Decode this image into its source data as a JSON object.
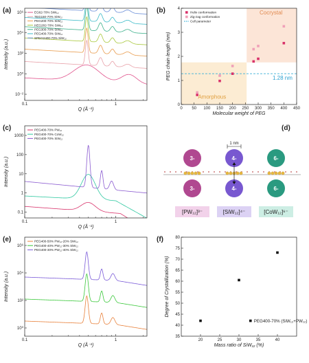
{
  "chart_data": [
    {
      "panel": "(a)",
      "type": "line",
      "xlabel": "Q (Å⁻¹)",
      "ylabel": "Intensity (a.u.)",
      "xscale": "log",
      "yscale": "log",
      "xticks": [
        "0.1",
        "1"
      ],
      "yticks": [
        "10⁻²",
        "10⁰",
        "10²",
        "10⁴",
        "10⁶"
      ],
      "legend_position": "top-left",
      "series": [
        {
          "name": "EG62-70% SiW₁₂",
          "color": "#e0508a"
        },
        {
          "name": "TEG150-70% SiW₁₂",
          "color": "#e8a0a8"
        },
        {
          "name": "PEG200-70% SiW₁₂",
          "color": "#e89a4a"
        },
        {
          "name": "HEG282-70% SiW₁₂",
          "color": "#a8c83a"
        },
        {
          "name": "PEG300-70% SiW₁₂",
          "color": "#3ab08a"
        },
        {
          "name": "PEG400-70% SiW₁₂",
          "color": "#3abac8"
        },
        {
          "name": "SPEG2400-70% SiW₁₂",
          "color": "#6a8ed8"
        }
      ]
    },
    {
      "panel": "(b)",
      "type": "scatter",
      "xlabel": "Molecular weight of PEG",
      "ylabel": "PEG chain length (nm)",
      "xlim": [
        0,
        450
      ],
      "ylim": [
        0,
        4
      ],
      "xticks": [
        "0",
        "50",
        "100",
        "150",
        "200",
        "250",
        "300",
        "350",
        "400",
        "450"
      ],
      "yticks": [
        "0",
        "1",
        "2",
        "3",
        "4"
      ],
      "legend_position": "top-left",
      "regions": [
        "Amorphous",
        "Cocrystal"
      ],
      "cell_parameter": {
        "label": "Cell parameter",
        "value": 1.28,
        "text": "1.28 nm"
      },
      "series": [
        {
          "name": "Helix conformation",
          "color": "#d8326a",
          "points": [
            [
              62,
              0.4
            ],
            [
              150,
              0.98
            ],
            [
              200,
              1.28
            ],
            [
              282,
              1.79
            ],
            [
              300,
              1.9
            ],
            [
              400,
              2.55
            ]
          ]
        },
        {
          "name": "Zig-zag conformation",
          "color": "#f0a0b8",
          "points": [
            [
              62,
              0.5
            ],
            [
              150,
              1.2
            ],
            [
              200,
              1.6
            ],
            [
              282,
              2.3
            ],
            [
              300,
              2.43
            ],
            [
              400,
              3.25
            ]
          ]
        }
      ]
    },
    {
      "panel": "(c)",
      "type": "line",
      "xlabel": "Q (Å⁻¹)",
      "ylabel": "Intensity (a.u.)",
      "xscale": "log",
      "yscale": "log",
      "xticks": [
        "0.1",
        "1"
      ],
      "yticks": [
        "0.1",
        "1",
        "10",
        "100",
        "1000"
      ],
      "legend_position": "top-left",
      "series": [
        {
          "name": "PEG400-70% PW₁₂",
          "color": "#d8326a"
        },
        {
          "name": "PEG400-70% CoW₁₂",
          "color": "#2ec8a0"
        },
        {
          "name": "PEG400-70% SiW₁₂",
          "color": "#8a5ad0"
        }
      ]
    },
    {
      "panel": "(e)",
      "type": "line",
      "xlabel": "Q (Å⁻¹)",
      "ylabel": "Intensity (a.u.)",
      "xscale": "log",
      "yscale": "log",
      "xticks": [
        "0.1",
        "1"
      ],
      "yticks": [
        "10⁰",
        "10²",
        "10⁴",
        "10⁶"
      ],
      "legend_position": "top-left",
      "series": [
        {
          "name": "PEG400-50% PW₁₂-20% SiW₁₂",
          "color": "#e8803a"
        },
        {
          "name": "PEG400-40% PW₁₂-30% SiW₁₂",
          "color": "#3ac83a"
        },
        {
          "name": "PEG400-30% PW₁₂-40% SiW₁₂",
          "color": "#7a5ad8"
        }
      ]
    },
    {
      "panel": "(f)",
      "type": "scatter",
      "xlabel": "Mass ratio of SiW₁₂ (%)",
      "ylabel": "Degree of Crystallization (%)",
      "xlim": [
        15,
        45
      ],
      "ylim": [
        35,
        80
      ],
      "xticks": [
        "20",
        "25",
        "30",
        "35",
        "40"
      ],
      "yticks": [
        "35",
        "40",
        "45",
        "50",
        "55",
        "60",
        "65",
        "70",
        "75",
        "80"
      ],
      "legend_position": "bottom-right",
      "series": [
        {
          "name": "PEG400-70% (SiW₁₂+PW₁₂)",
          "color": "#111111",
          "points": [
            [
              20,
              42
            ],
            [
              30,
              60.5
            ],
            [
              40,
              73
            ]
          ]
        }
      ]
    }
  ],
  "diagram_d": {
    "panel": "(d)",
    "spacing": "1 nm",
    "clusters": [
      {
        "charge_top": "3-",
        "charge_bottom": "3-",
        "formula": "[PW₁₂]³⁻",
        "color": "#b04890",
        "label_bg": "#f2d2ea"
      },
      {
        "charge_top": "4-",
        "charge_bottom": "4-",
        "formula": "[SiW₁₂]⁴⁻",
        "color": "#7858d0",
        "label_bg": "#dcd2f4"
      },
      {
        "charge_top": "6-",
        "charge_bottom": "6-",
        "formula": "[CoW₁₂]⁶⁻",
        "color": "#2a9a80",
        "label_bg": "#cdeee4"
      }
    ]
  }
}
